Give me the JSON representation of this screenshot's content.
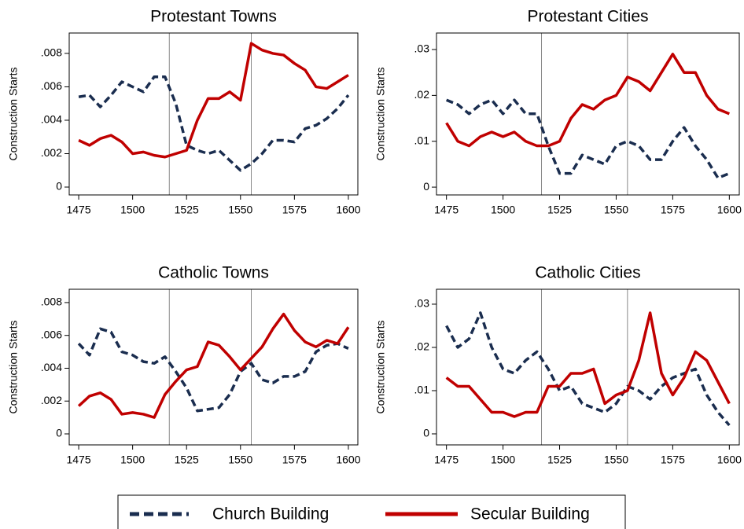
{
  "chart_data": [
    {
      "type": "line",
      "title": "Protestant Towns",
      "ylabel": "Construction Starts",
      "x": [
        1475,
        1480,
        1485,
        1490,
        1495,
        1500,
        1505,
        1510,
        1515,
        1520,
        1525,
        1530,
        1535,
        1540,
        1545,
        1550,
        1555,
        1560,
        1565,
        1570,
        1575,
        1580,
        1585,
        1590,
        1595,
        1600
      ],
      "series": [
        {
          "name": "Church Building",
          "color": "#1a2d4f",
          "dash": true,
          "values": [
            0.0054,
            0.0055,
            0.0048,
            0.0055,
            0.0063,
            0.006,
            0.0057,
            0.0066,
            0.0066,
            0.005,
            0.0025,
            0.0022,
            0.002,
            0.0022,
            0.0016,
            0.001,
            0.0014,
            0.002,
            0.0028,
            0.0028,
            0.0027,
            0.0035,
            0.0037,
            0.0041,
            0.0047,
            0.0055
          ]
        },
        {
          "name": "Secular Building",
          "color": "#c00000",
          "dash": false,
          "values": [
            0.0028,
            0.0025,
            0.0029,
            0.0031,
            0.0027,
            0.002,
            0.0021,
            0.0019,
            0.0018,
            0.002,
            0.0022,
            0.004,
            0.0053,
            0.0053,
            0.0057,
            0.0052,
            0.0086,
            0.0082,
            0.008,
            0.0079,
            0.0074,
            0.007,
            0.006,
            0.0059,
            0.0063,
            0.0067
          ]
        }
      ],
      "xlim": [
        1470.6,
        1604.4
      ],
      "xticks": [
        1475,
        1500,
        1525,
        1550,
        1575,
        1600
      ],
      "ylim": [
        -0.00047,
        0.00922
      ],
      "yticks": [
        0,
        {
          "value": 0.002,
          "label": ".002"
        },
        {
          "value": 0.004,
          "label": ".004"
        },
        {
          "value": 0.006,
          "label": ".006"
        },
        {
          "value": 0.008,
          "label": ".008"
        }
      ],
      "vlines": [
        1517,
        1555
      ]
    },
    {
      "type": "line",
      "title": "Protestant Cities",
      "ylabel": "Construction Starts",
      "x": [
        1475,
        1480,
        1485,
        1490,
        1495,
        1500,
        1505,
        1510,
        1515,
        1520,
        1525,
        1530,
        1535,
        1540,
        1545,
        1550,
        1555,
        1560,
        1565,
        1570,
        1575,
        1580,
        1585,
        1590,
        1595,
        1600
      ],
      "series": [
        {
          "name": "Church Building",
          "color": "#1a2d4f",
          "dash": true,
          "values": [
            0.019,
            0.018,
            0.016,
            0.018,
            0.019,
            0.016,
            0.019,
            0.016,
            0.016,
            0.009,
            0.003,
            0.003,
            0.007,
            0.006,
            0.005,
            0.009,
            0.01,
            0.009,
            0.006,
            0.006,
            0.01,
            0.013,
            0.009,
            0.006,
            0.002,
            0.003
          ]
        },
        {
          "name": "Secular Building",
          "color": "#c00000",
          "dash": false,
          "values": [
            0.014,
            0.01,
            0.009,
            0.011,
            0.012,
            0.011,
            0.012,
            0.01,
            0.009,
            0.009,
            0.01,
            0.015,
            0.018,
            0.017,
            0.019,
            0.02,
            0.024,
            0.023,
            0.021,
            0.025,
            0.029,
            0.025,
            0.025,
            0.02,
            0.017,
            0.016
          ]
        }
      ],
      "xlim": [
        1470.6,
        1604.4
      ],
      "xticks": [
        1475,
        1500,
        1525,
        1550,
        1575,
        1600
      ],
      "ylim": [
        -0.0017,
        0.0336
      ],
      "yticks": [
        0,
        {
          "value": 0.01,
          "label": ".01"
        },
        {
          "value": 0.02,
          "label": ".02"
        },
        {
          "value": 0.03,
          "label": ".03"
        }
      ],
      "vlines": [
        1517,
        1555
      ]
    },
    {
      "type": "line",
      "title": "Catholic Towns",
      "ylabel": "Construction Starts",
      "x": [
        1475,
        1480,
        1485,
        1490,
        1495,
        1500,
        1505,
        1510,
        1515,
        1520,
        1525,
        1530,
        1535,
        1540,
        1545,
        1550,
        1555,
        1560,
        1565,
        1570,
        1575,
        1580,
        1585,
        1590,
        1595,
        1600
      ],
      "series": [
        {
          "name": "Church Building",
          "color": "#1a2d4f",
          "dash": true,
          "values": [
            0.0055,
            0.0048,
            0.0064,
            0.0062,
            0.005,
            0.0048,
            0.0044,
            0.0043,
            0.0047,
            0.0038,
            0.0028,
            0.0014,
            0.0015,
            0.0016,
            0.0024,
            0.0038,
            0.0043,
            0.0033,
            0.0031,
            0.0035,
            0.0035,
            0.0038,
            0.005,
            0.0054,
            0.0055,
            0.0052
          ]
        },
        {
          "name": "Secular Building",
          "color": "#c00000",
          "dash": false,
          "values": [
            0.0017,
            0.0023,
            0.0025,
            0.0021,
            0.0012,
            0.0013,
            0.0012,
            0.001,
            0.0024,
            0.0032,
            0.0039,
            0.0041,
            0.0056,
            0.0054,
            0.0047,
            0.0039,
            0.0046,
            0.0053,
            0.0064,
            0.0073,
            0.0063,
            0.0056,
            0.0053,
            0.0057,
            0.0055,
            0.0065
          ]
        }
      ],
      "xlim": [
        1470.6,
        1604.4
      ],
      "xticks": [
        1475,
        1500,
        1525,
        1550,
        1575,
        1600
      ],
      "ylim": [
        -0.00067,
        0.00881
      ],
      "yticks": [
        0,
        {
          "value": 0.002,
          "label": ".002"
        },
        {
          "value": 0.004,
          "label": ".004"
        },
        {
          "value": 0.006,
          "label": ".006"
        },
        {
          "value": 0.008,
          "label": ".008"
        }
      ],
      "vlines": [
        1517,
        1555
      ]
    },
    {
      "type": "line",
      "title": "Catholic Cities",
      "ylabel": "Construction Starts",
      "x": [
        1475,
        1480,
        1485,
        1490,
        1495,
        1500,
        1505,
        1510,
        1515,
        1520,
        1525,
        1530,
        1535,
        1540,
        1545,
        1550,
        1555,
        1560,
        1565,
        1570,
        1575,
        1580,
        1585,
        1590,
        1595,
        1600
      ],
      "series": [
        {
          "name": "Church Building",
          "color": "#1a2d4f",
          "dash": true,
          "values": [
            0.025,
            0.02,
            0.022,
            0.028,
            0.02,
            0.015,
            0.014,
            0.017,
            0.019,
            0.015,
            0.01,
            0.011,
            0.007,
            0.006,
            0.005,
            0.007,
            0.011,
            0.01,
            0.008,
            0.011,
            0.013,
            0.014,
            0.015,
            0.009,
            0.005,
            0.002
          ]
        },
        {
          "name": "Secular Building",
          "color": "#c00000",
          "dash": false,
          "values": [
            0.013,
            0.011,
            0.011,
            0.008,
            0.005,
            0.005,
            0.004,
            0.005,
            0.005,
            0.011,
            0.011,
            0.014,
            0.014,
            0.015,
            0.007,
            0.009,
            0.01,
            0.017,
            0.028,
            0.014,
            0.009,
            0.013,
            0.019,
            0.017,
            0.012,
            0.007
          ]
        }
      ],
      "xlim": [
        1470.6,
        1604.4
      ],
      "xticks": [
        1475,
        1500,
        1525,
        1550,
        1575,
        1600
      ],
      "ylim": [
        -0.00255,
        0.03345
      ],
      "yticks": [
        0,
        {
          "value": 0.01,
          "label": ".01"
        },
        {
          "value": 0.02,
          "label": ".02"
        },
        {
          "value": 0.03,
          "label": ".03"
        }
      ],
      "vlines": [
        1517,
        1555
      ]
    }
  ]
}
